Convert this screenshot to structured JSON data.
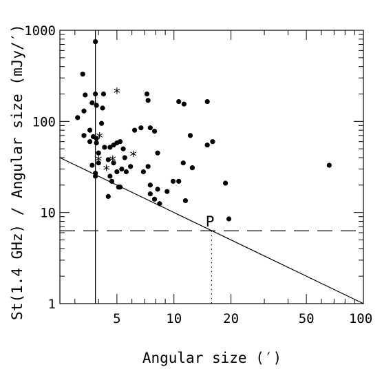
{
  "chart_data": {
    "type": "scatter",
    "title": "",
    "xlabel": "Angular size (′)",
    "ylabel": "St(1.4 GHz) / Angular size (mJy/′)",
    "xscale": "log",
    "yscale": "log",
    "xlim": [
      2.5,
      100
    ],
    "ylim": [
      1,
      1000
    ],
    "x_ticks": [
      5,
      10,
      20,
      50,
      100
    ],
    "y_ticks": [
      1,
      10,
      100,
      1000
    ],
    "grid": false,
    "series": [
      {
        "marker": "dot",
        "points": [
          [
            3.85,
            750
          ],
          [
            3.3,
            330
          ],
          [
            3.4,
            195
          ],
          [
            3.85,
            200
          ],
          [
            3.7,
            160
          ],
          [
            4.25,
            200
          ],
          [
            3.9,
            150
          ],
          [
            3.35,
            130
          ],
          [
            4.2,
            140
          ],
          [
            3.1,
            110
          ],
          [
            4.15,
            95
          ],
          [
            3.6,
            80
          ],
          [
            3.35,
            70
          ],
          [
            3.75,
            68
          ],
          [
            3.9,
            65
          ],
          [
            3.6,
            60
          ],
          [
            3.9,
            58
          ],
          [
            4.0,
            45
          ],
          [
            3.85,
            25
          ],
          [
            3.85,
            27
          ],
          [
            4.0,
            35
          ],
          [
            3.7,
            33
          ],
          [
            4.3,
            52
          ],
          [
            4.6,
            52
          ],
          [
            4.8,
            55
          ],
          [
            5.0,
            58
          ],
          [
            5.2,
            60
          ],
          [
            5.4,
            50
          ],
          [
            5.5,
            40
          ],
          [
            4.5,
            38
          ],
          [
            4.8,
            35
          ],
          [
            5.3,
            30
          ],
          [
            5.0,
            28
          ],
          [
            4.6,
            25
          ],
          [
            4.7,
            22
          ],
          [
            5.1,
            19
          ],
          [
            5.2,
            19
          ],
          [
            4.5,
            15
          ],
          [
            5.6,
            28
          ],
          [
            5.9,
            32
          ],
          [
            6.2,
            80
          ],
          [
            6.7,
            85
          ],
          [
            7.5,
            85
          ],
          [
            7.2,
            200
          ],
          [
            7.3,
            170
          ],
          [
            7.9,
            78
          ],
          [
            8.2,
            45
          ],
          [
            7.3,
            32
          ],
          [
            6.9,
            28
          ],
          [
            7.5,
            20
          ],
          [
            7.5,
            16
          ],
          [
            7.9,
            14
          ],
          [
            8.2,
            18
          ],
          [
            8.4,
            12.5
          ],
          [
            9.2,
            17
          ],
          [
            9.9,
            22
          ],
          [
            10.6,
            22
          ],
          [
            10.6,
            165
          ],
          [
            11.3,
            155
          ],
          [
            11.2,
            35
          ],
          [
            12.2,
            70
          ],
          [
            12.5,
            31
          ],
          [
            11.5,
            13.5
          ],
          [
            15.0,
            165
          ],
          [
            15.0,
            55
          ],
          [
            16.0,
            60
          ],
          [
            18.7,
            21
          ],
          [
            19.5,
            8.5
          ],
          [
            66.0,
            33
          ]
        ]
      },
      {
        "marker": "asterisk",
        "points": [
          [
            5.0,
            210
          ],
          [
            4.05,
            68
          ],
          [
            4.0,
            38
          ],
          [
            4.4,
            30
          ],
          [
            4.75,
            38
          ],
          [
            6.1,
            43
          ]
        ]
      }
    ],
    "reference_lines": [
      {
        "kind": "vertical",
        "style": "solid",
        "x": 3.85
      },
      {
        "kind": "horizontal",
        "style": "dashed",
        "y": 6.3
      },
      {
        "kind": "line",
        "style": "solid",
        "from": [
          2.5,
          40
        ],
        "to": [
          100,
          1.0
        ]
      },
      {
        "kind": "drop",
        "style": "dotted",
        "x": 15.8,
        "from_y": 6.3,
        "to_y": 1
      }
    ],
    "annotations": [
      {
        "text": "P",
        "x": 15.5,
        "y": 7.9
      }
    ]
  }
}
